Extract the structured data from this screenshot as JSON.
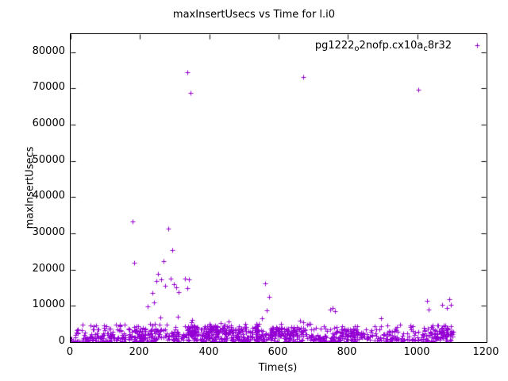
{
  "chart_data": {
    "type": "scatter",
    "title": "maxInsertUsecs vs Time for l.i0",
    "xlabel": "Time(s)",
    "ylabel": "maxInsertUsecs",
    "xlim": [
      0,
      1200
    ],
    "ylim": [
      0,
      85000
    ],
    "x_ticks": [
      0,
      200,
      400,
      600,
      800,
      1000,
      1200
    ],
    "y_ticks": [
      0,
      10000,
      20000,
      30000,
      40000,
      50000,
      60000,
      70000,
      80000
    ],
    "grid": false,
    "legend_position": "top-right-inside",
    "marker": "plus",
    "marker_color": "#9400d3",
    "legend": {
      "parts": [
        {
          "text": "pg1222"
        },
        {
          "text": "o"
        },
        {
          "text": "2nofp.cx10a"
        },
        {
          "text": "c"
        },
        {
          "text": "8r32"
        }
      ]
    },
    "outliers": [
      [
        337,
        74500
      ],
      [
        346,
        68800
      ],
      [
        672,
        73200
      ],
      [
        1004,
        69700
      ],
      [
        178,
        33200
      ],
      [
        184,
        21900
      ],
      [
        282,
        31300
      ],
      [
        292,
        25500
      ],
      [
        269,
        22400
      ],
      [
        252,
        18900
      ],
      [
        247,
        16900
      ],
      [
        262,
        17400
      ],
      [
        272,
        15500
      ],
      [
        288,
        17600
      ],
      [
        298,
        16100
      ],
      [
        305,
        15200
      ],
      [
        312,
        13900
      ],
      [
        330,
        17500
      ],
      [
        336,
        14900
      ],
      [
        342,
        17300
      ],
      [
        222,
        9800
      ],
      [
        236,
        13600
      ],
      [
        240,
        11000
      ],
      [
        258,
        6800
      ],
      [
        310,
        7000
      ],
      [
        560,
        16300
      ],
      [
        573,
        12500
      ],
      [
        565,
        8800
      ],
      [
        552,
        6500
      ],
      [
        748,
        8900
      ],
      [
        756,
        9500
      ],
      [
        762,
        8600
      ],
      [
        1028,
        11500
      ],
      [
        1032,
        9000
      ],
      [
        1072,
        10400
      ],
      [
        1092,
        11800
      ],
      [
        1086,
        9400
      ],
      [
        1098,
        10200
      ],
      [
        895,
        6600
      ],
      [
        662,
        6000
      ],
      [
        670,
        5500
      ],
      [
        455,
        5600
      ],
      [
        350,
        6200
      ],
      [
        348,
        5400
      ],
      [
        130,
        4900
      ],
      [
        96,
        4600
      ]
    ],
    "dense_band": {
      "seed": 1337,
      "count": 800,
      "x_min": 2,
      "x_max": 1105,
      "layers": [
        {
          "fraction": 0.62,
          "y_min": 100,
          "y_max": 1800
        },
        {
          "fraction": 0.3,
          "y_min": 1800,
          "y_max": 3800
        },
        {
          "fraction": 0.08,
          "y_min": 3800,
          "y_max": 5200
        }
      ],
      "clusters": [
        {
          "x_min": 335,
          "x_max": 370,
          "count": 45,
          "y_min": 2000,
          "y_max": 4800
        },
        {
          "x_min": 380,
          "x_max": 540,
          "count": 90,
          "y_min": 2200,
          "y_max": 4600
        },
        {
          "x_min": 570,
          "x_max": 680,
          "count": 70,
          "y_min": 1800,
          "y_max": 4200
        },
        {
          "x_min": 780,
          "x_max": 840,
          "count": 35,
          "y_min": 1500,
          "y_max": 3600
        },
        {
          "x_min": 1035,
          "x_max": 1105,
          "count": 45,
          "y_min": 1500,
          "y_max": 4600
        },
        {
          "x_min": 180,
          "x_max": 330,
          "count": 40,
          "y_min": 1500,
          "y_max": 3500
        }
      ]
    }
  }
}
